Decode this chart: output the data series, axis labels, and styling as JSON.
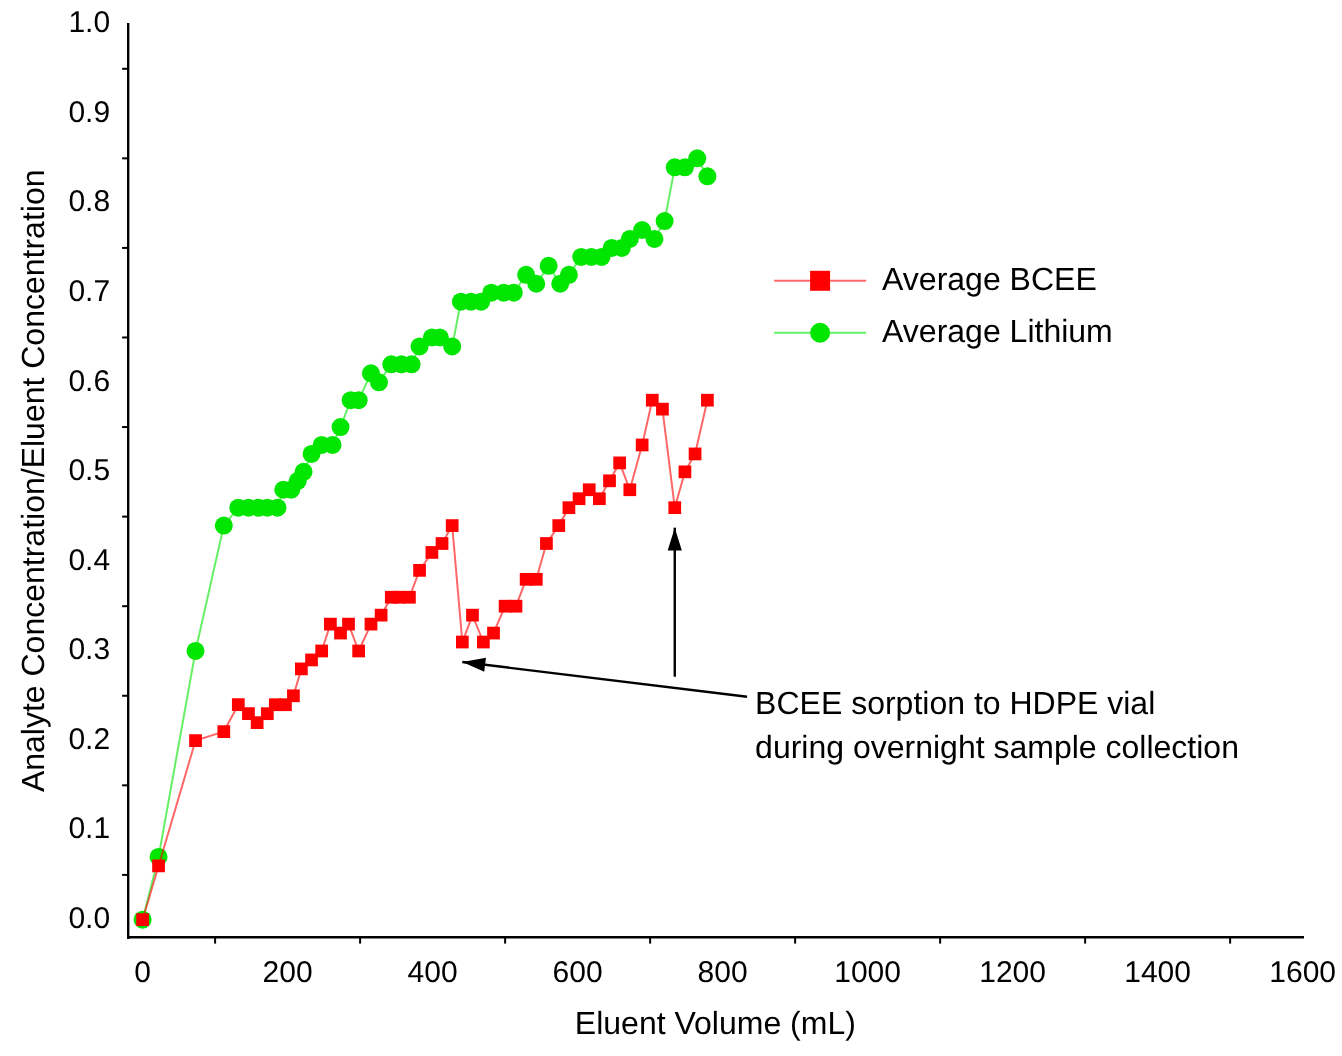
{
  "chart_data": {
    "type": "line",
    "xlabel": "Eluent Volume (mL)",
    "ylabel": "Analyte Concentration/Eluent Concentration",
    "xlim": [
      -20,
      1600
    ],
    "xticks": [
      0,
      200,
      400,
      600,
      800,
      1000,
      1200,
      1400,
      1600
    ],
    "ylim": [
      -0.02,
      1.0
    ],
    "yticks": [
      {
        "value": 0,
        "label": "0.0"
      },
      0.1,
      0.2,
      0.3,
      0.4,
      0.5,
      0.6,
      0.7,
      0.8,
      0.9,
      {
        "value": 1,
        "label": "1.0"
      }
    ],
    "grid": false,
    "legend": "right",
    "line_style": "solid",
    "annotations": [
      "BCEE sorption to HDPE vial\nduring overnight sample collection"
    ],
    "series": [
      {
        "name": "Average BCEE",
        "color": "#ff0000",
        "marker": "square",
        "x": [
          0,
          22,
          73,
          112,
          132,
          146,
          158,
          172,
          183,
          197,
          208,
          219,
          233,
          247,
          259,
          273,
          284,
          298,
          315,
          329,
          343,
          354,
          368,
          382,
          399,
          413,
          427,
          441,
          455,
          470,
          484,
          500,
          515,
          529,
          543,
          557,
          574,
          588,
          602,
          616,
          630,
          644,
          658,
          672,
          689,
          703,
          717,
          734,
          748,
          762,
          779
        ],
        "values": [
          0,
          0.06,
          0.2,
          0.21,
          0.24,
          0.23,
          0.22,
          0.23,
          0.24,
          0.24,
          0.25,
          0.28,
          0.29,
          0.3,
          0.33,
          0.32,
          0.33,
          0.3,
          0.33,
          0.34,
          0.36,
          0.36,
          0.36,
          0.39,
          0.41,
          0.42,
          0.44,
          0.31,
          0.34,
          0.31,
          0.32,
          0.35,
          0.35,
          0.38,
          0.38,
          0.42,
          0.44,
          0.46,
          0.47,
          0.48,
          0.47,
          0.49,
          0.51,
          0.48,
          0.53,
          0.58,
          0.57,
          0.46,
          0.5,
          0.52,
          0.58
        ]
      },
      {
        "name": "Average Lithium",
        "color": "#00e600",
        "marker": "circle",
        "x": [
          0,
          22,
          73,
          112,
          132,
          146,
          160,
          172,
          186,
          194,
          205,
          214,
          222,
          233,
          247,
          262,
          273,
          287,
          298,
          315,
          326,
          343,
          357,
          371,
          382,
          399,
          410,
          427,
          439,
          453,
          467,
          481,
          498,
          512,
          529,
          543,
          560,
          576,
          588,
          605,
          619,
          633,
          647,
          661,
          672,
          689,
          706,
          720,
          734,
          748,
          765,
          779
        ],
        "values": [
          0,
          0.07,
          0.3,
          0.44,
          0.46,
          0.46,
          0.46,
          0.46,
          0.46,
          0.48,
          0.48,
          0.49,
          0.5,
          0.52,
          0.53,
          0.53,
          0.55,
          0.58,
          0.58,
          0.61,
          0.6,
          0.62,
          0.62,
          0.62,
          0.64,
          0.65,
          0.65,
          0.64,
          0.69,
          0.69,
          0.69,
          0.7,
          0.7,
          0.7,
          0.72,
          0.71,
          0.73,
          0.71,
          0.72,
          0.74,
          0.74,
          0.74,
          0.75,
          0.75,
          0.76,
          0.77,
          0.76,
          0.78,
          0.84,
          0.84,
          0.85,
          0.83
        ]
      }
    ]
  }
}
